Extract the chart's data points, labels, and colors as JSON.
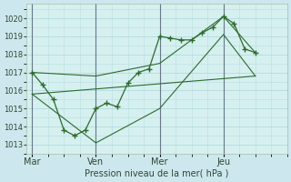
{
  "xlabel": "Pression niveau de la mer( hPa )",
  "bg_color": "#cce8ee",
  "plot_bg_color": "#d6f0f0",
  "line_color": "#2d6a2d",
  "grid_color": "#b8dde0",
  "ylim": [
    1012.5,
    1020.8
  ],
  "yticks": [
    1013,
    1014,
    1015,
    1016,
    1017,
    1018,
    1019,
    1020
  ],
  "day_labels": [
    "Mar",
    "Ven",
    "Mer",
    "Jeu"
  ],
  "day_positions": [
    0,
    24,
    48,
    72
  ],
  "xlim": [
    -2,
    96
  ],
  "vline_positions": [
    0,
    24,
    48,
    72
  ],
  "series1_x": [
    0,
    4,
    8,
    12,
    16,
    20,
    24,
    28,
    32,
    36,
    40,
    44,
    48,
    52,
    56,
    60,
    64,
    68,
    72,
    76,
    80,
    84
  ],
  "series1_y": [
    1017.0,
    1016.3,
    1015.5,
    1013.8,
    1013.5,
    1013.8,
    1015.0,
    1015.3,
    1015.1,
    1016.4,
    1017.0,
    1017.2,
    1019.0,
    1018.9,
    1018.8,
    1018.8,
    1019.2,
    1019.5,
    1020.1,
    1019.7,
    1018.3,
    1018.1
  ],
  "series2_x": [
    0,
    24,
    48,
    72,
    84
  ],
  "series2_y": [
    1017.0,
    1016.8,
    1017.5,
    1020.1,
    1018.1
  ],
  "series3_x": [
    0,
    24,
    48,
    72,
    84
  ],
  "series3_y": [
    1015.8,
    1013.1,
    1015.0,
    1019.1,
    1016.8
  ],
  "series4_x": [
    0,
    84
  ],
  "series4_y": [
    1015.8,
    1016.8
  ]
}
